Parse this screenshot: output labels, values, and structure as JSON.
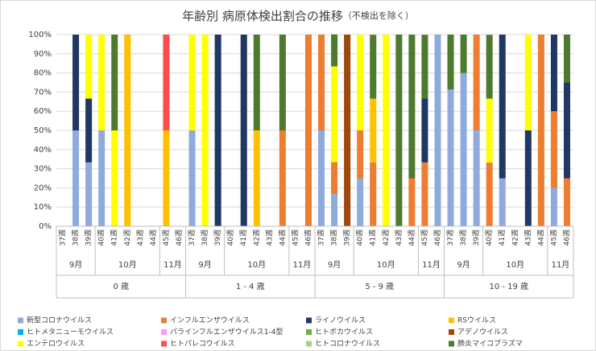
{
  "chart_data": {
    "type": "stacked_bar",
    "title": "年齢別 病原体検出割合の推移",
    "subtitle": "（不検出を除く）",
    "groups": [
      {
        "label": "0 歳",
        "months": [
          {
            "label": "9月",
            "weeks": [
              "37週",
              "38週",
              "39週"
            ]
          },
          {
            "label": "10月",
            "weeks": [
              "40週",
              "41週",
              "42週",
              "43週",
              "44週"
            ]
          },
          {
            "label": "11月",
            "weeks": [
              "45週",
              "46週"
            ]
          }
        ]
      },
      {
        "label": "1 - 4 歳",
        "months": [
          {
            "label": "9月",
            "weeks": [
              "37週",
              "38週",
              "39週"
            ]
          },
          {
            "label": "10月",
            "weeks": [
              "40週",
              "41週",
              "42週",
              "43週",
              "44週"
            ]
          },
          {
            "label": "11月",
            "weeks": [
              "45週",
              "46週"
            ]
          }
        ]
      },
      {
        "label": "5 - 9 歳",
        "months": [
          {
            "label": "9月",
            "weeks": [
              "37週",
              "38週",
              "39週"
            ]
          },
          {
            "label": "10月",
            "weeks": [
              "40週",
              "41週",
              "42週",
              "43週",
              "44週"
            ]
          },
          {
            "label": "11月",
            "weeks": [
              "45週",
              "46週"
            ]
          }
        ]
      },
      {
        "label": "10 - 19 歳",
        "months": [
          {
            "label": "9月",
            "weeks": [
              "37週",
              "38週",
              "39週"
            ]
          },
          {
            "label": "10月",
            "weeks": [
              "40週",
              "41週",
              "42週",
              "43週",
              "44週"
            ]
          },
          {
            "label": "11月",
            "weeks": [
              "45週",
              "46週"
            ]
          }
        ]
      }
    ],
    "ylim": [
      0,
      100
    ],
    "yticks": [
      {
        "value": 0,
        "label": "0%"
      },
      {
        "value": 10,
        "label": "10%"
      },
      {
        "value": 20,
        "label": "20%"
      },
      {
        "value": 30,
        "label": "30%"
      },
      {
        "value": 40,
        "label": "40%"
      },
      {
        "value": 50,
        "label": "50%"
      },
      {
        "value": 60,
        "label": "60%"
      },
      {
        "value": 70,
        "label": "70%"
      },
      {
        "value": 80,
        "label": "80%"
      },
      {
        "value": 90,
        "label": "90%"
      },
      {
        "value": 100,
        "label": "100%"
      }
    ],
    "grid": true,
    "legend": "bottom",
    "series": [
      {
        "name": "新型コロナウイルス",
        "color": "#8faadc",
        "values": [
          0,
          50,
          33.3,
          50,
          0,
          0,
          0,
          0,
          0,
          0,
          50,
          0,
          0,
          0,
          0,
          0,
          0,
          0,
          0,
          0,
          50,
          16.7,
          0,
          25,
          0,
          0,
          0,
          0,
          0,
          100,
          71.4,
          80,
          50,
          0,
          25,
          0,
          0,
          0,
          20,
          0
        ]
      },
      {
        "name": "インフルエンザウイルス",
        "color": "#ed7d31",
        "values": [
          0,
          0,
          0,
          0,
          0,
          0,
          0,
          0,
          0,
          0,
          0,
          0,
          0,
          0,
          0,
          0,
          0,
          50,
          0,
          100,
          50,
          16.7,
          0,
          25,
          33.3,
          0,
          0,
          25,
          33.3,
          0,
          0,
          0,
          50,
          33.3,
          0,
          0,
          0,
          100,
          40,
          25
        ]
      },
      {
        "name": "ライノウイルス",
        "color": "#203864",
        "values": [
          0,
          50,
          33.3,
          0,
          0,
          0,
          0,
          0,
          0,
          0,
          0,
          0,
          100,
          0,
          100,
          0,
          0,
          0,
          0,
          0,
          0,
          0,
          0,
          0,
          0,
          0,
          0,
          0,
          33.3,
          0,
          0,
          0,
          0,
          0,
          75,
          0,
          50,
          0,
          40,
          50
        ]
      },
      {
        "name": "RSウイルス",
        "color": "#ffc000",
        "values": [
          0,
          0,
          0,
          0,
          0,
          100,
          0,
          0,
          50,
          0,
          0,
          0,
          0,
          0,
          0,
          50,
          0,
          0,
          0,
          0,
          0,
          0,
          0,
          0,
          33.3,
          0,
          0,
          0,
          0,
          0,
          0,
          0,
          0,
          0,
          0,
          0,
          0,
          0,
          0,
          0
        ]
      },
      {
        "name": "ヒトメタニューモウイルス",
        "color": "#00b0f0",
        "values": [
          0,
          0,
          0,
          0,
          0,
          0,
          0,
          0,
          0,
          0,
          0,
          0,
          0,
          0,
          0,
          0,
          0,
          0,
          0,
          0,
          0,
          0,
          0,
          0,
          0,
          0,
          0,
          0,
          0,
          0,
          0,
          0,
          0,
          0,
          0,
          0,
          0,
          0,
          0,
          0
        ]
      },
      {
        "name": "パラインフルエンザウイルス1-4型",
        "color": "#ff99ff",
        "values": [
          0,
          0,
          0,
          0,
          0,
          0,
          0,
          0,
          0,
          0,
          0,
          0,
          0,
          0,
          0,
          0,
          0,
          0,
          0,
          0,
          0,
          0,
          0,
          0,
          0,
          0,
          0,
          0,
          0,
          0,
          0,
          0,
          0,
          0,
          0,
          0,
          0,
          0,
          0,
          0
        ]
      },
      {
        "name": "ヒトボカウイルス",
        "color": "#70ad47",
        "values": [
          0,
          0,
          0,
          0,
          0,
          0,
          0,
          0,
          0,
          0,
          0,
          0,
          0,
          0,
          0,
          0,
          0,
          0,
          0,
          0,
          0,
          0,
          0,
          0,
          0,
          0,
          0,
          0,
          0,
          0,
          0,
          0,
          0,
          0,
          0,
          0,
          0,
          0,
          0,
          0
        ]
      },
      {
        "name": "アデノウイルス",
        "color": "#9e480e",
        "values": [
          0,
          0,
          0,
          0,
          0,
          0,
          0,
          0,
          0,
          0,
          0,
          0,
          0,
          0,
          0,
          0,
          0,
          0,
          0,
          0,
          0,
          0,
          100,
          0,
          0,
          0,
          0,
          0,
          0,
          0,
          0,
          0,
          0,
          0,
          0,
          0,
          0,
          0,
          0,
          0
        ]
      },
      {
        "name": "エンテロウイルス",
        "color": "#ffff00",
        "values": [
          0,
          0,
          33.3,
          50,
          50,
          0,
          0,
          0,
          0,
          0,
          50,
          100,
          0,
          0,
          0,
          0,
          0,
          0,
          0,
          0,
          0,
          50,
          0,
          50,
          0,
          100,
          0,
          0,
          0,
          0,
          0,
          0,
          0,
          33.3,
          0,
          0,
          50,
          0,
          0,
          0
        ]
      },
      {
        "name": "ヒトパレコウイルス",
        "color": "#ff4b4b",
        "values": [
          0,
          0,
          0,
          0,
          0,
          0,
          0,
          0,
          50,
          0,
          0,
          0,
          0,
          0,
          0,
          0,
          0,
          0,
          0,
          0,
          0,
          0,
          0,
          0,
          0,
          0,
          0,
          0,
          0,
          0,
          0,
          0,
          0,
          0,
          0,
          0,
          0,
          0,
          0,
          0
        ]
      },
      {
        "name": "ヒトコロナウイルス",
        "color": "#a9d18e",
        "values": [
          0,
          0,
          0,
          0,
          0,
          0,
          0,
          0,
          0,
          0,
          0,
          0,
          0,
          0,
          0,
          0,
          0,
          0,
          0,
          0,
          0,
          0,
          0,
          0,
          0,
          0,
          0,
          0,
          0,
          0,
          0,
          0,
          0,
          0,
          0,
          0,
          0,
          0,
          0,
          0
        ]
      },
      {
        "name": "肺炎マイコプラズマ",
        "color": "#4e7a2f",
        "values": [
          0,
          0,
          0,
          0,
          50,
          0,
          0,
          0,
          0,
          0,
          0,
          0,
          0,
          0,
          0,
          50,
          0,
          50,
          0,
          0,
          0,
          16.7,
          0,
          0,
          33.3,
          0,
          100,
          75,
          33.3,
          0,
          28.6,
          20,
          0,
          33.3,
          0,
          0,
          0,
          0,
          0,
          25
        ]
      }
    ]
  }
}
